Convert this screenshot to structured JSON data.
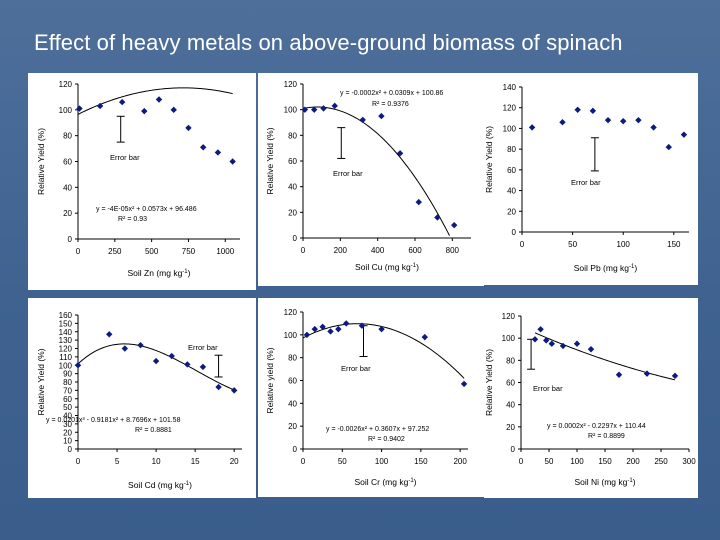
{
  "slide": {
    "title": "Effect of  heavy metals on above-ground biomass of spinach",
    "background_color": "#3f6290",
    "marker_color": "#0d1a80"
  },
  "chart_data": [
    {
      "type": "scatter",
      "xlabel": "Soil Zn (mg kg",
      "xlabel_sup": "-1",
      "xlabel_end": ")",
      "ylabel": "Relative Yield (%)",
      "xlim": [
        0,
        1100
      ],
      "ylim": [
        0,
        120
      ],
      "xticks": [
        0,
        250,
        500,
        750,
        1000
      ],
      "yticks": [
        0,
        20,
        40,
        60,
        80,
        100,
        120
      ],
      "points": [
        [
          10,
          101
        ],
        [
          150,
          103
        ],
        [
          300,
          106
        ],
        [
          450,
          99
        ],
        [
          550,
          108
        ],
        [
          650,
          100
        ],
        [
          750,
          86
        ],
        [
          850,
          71
        ],
        [
          950,
          67
        ],
        [
          1050,
          60
        ]
      ],
      "trend": {
        "coef": [
          -4e-05,
          0.0573,
          96.486
        ],
        "x_range": [
          0,
          1050
        ]
      },
      "equation": "y = -4E-05x² + 0.0573x + 96.486",
      "r2": "R² = 0.93",
      "error_bar_label": "Error bar",
      "error_bar": {
        "x": 290,
        "y_low": 75,
        "y_high": 95
      }
    },
    {
      "type": "scatter",
      "xlabel": "Soil Cu (mg kg",
      "xlabel_sup": "-1",
      "xlabel_end": ")",
      "ylabel": "Relative Yield (%)",
      "xlim": [
        0,
        900
      ],
      "ylim": [
        0,
        120
      ],
      "xticks": [
        0,
        200,
        400,
        600,
        800
      ],
      "yticks": [
        0,
        20,
        40,
        60,
        80,
        100,
        120
      ],
      "points": [
        [
          10,
          100
        ],
        [
          60,
          100
        ],
        [
          110,
          101
        ],
        [
          170,
          103
        ],
        [
          320,
          92
        ],
        [
          420,
          95
        ],
        [
          520,
          66
        ],
        [
          620,
          28
        ],
        [
          720,
          16
        ],
        [
          810,
          10
        ]
      ],
      "trend": {
        "coef": [
          -0.0002,
          0.0309,
          100.86
        ],
        "x_range": [
          0,
          785
        ]
      },
      "equation": "y = -0.0002x² + 0.0309x + 100.86",
      "r2": "R² = 0.9376",
      "error_bar_label": "Error bar",
      "error_bar": {
        "x": 205,
        "y_low": 62,
        "y_high": 86
      }
    },
    {
      "type": "scatter",
      "xlabel": "Soil Pb (mg kg",
      "xlabel_sup": "-1",
      "xlabel_end": ")",
      "ylabel": "Relative Yield (%)",
      "xlim": [
        0,
        165
      ],
      "ylim": [
        0,
        140
      ],
      "xticks": [
        0,
        50,
        100,
        150
      ],
      "yticks": [
        0,
        20,
        40,
        60,
        80,
        100,
        120,
        140
      ],
      "points": [
        [
          10,
          101
        ],
        [
          40,
          106
        ],
        [
          55,
          118
        ],
        [
          70,
          117
        ],
        [
          85,
          108
        ],
        [
          100,
          107
        ],
        [
          115,
          108
        ],
        [
          130,
          101
        ],
        [
          145,
          82
        ],
        [
          160,
          94
        ]
      ],
      "equation": "",
      "r2": "",
      "error_bar_label": "Error bar",
      "error_bar": {
        "x": 72,
        "y_low": 59,
        "y_high": 91
      }
    },
    {
      "type": "scatter",
      "xlabel": "Soil Cd (mg kg",
      "xlabel_sup": "-1",
      "xlabel_end": ")",
      "ylabel": "Relative Yield (%)",
      "xlim": [
        0,
        21
      ],
      "ylim": [
        0,
        160
      ],
      "xticks": [
        0,
        5,
        10,
        15,
        20
      ],
      "yticks": [
        0,
        10,
        20,
        30,
        40,
        50,
        60,
        70,
        80,
        90,
        100,
        110,
        120,
        130,
        140,
        150,
        160
      ],
      "points": [
        [
          0,
          100
        ],
        [
          4,
          137
        ],
        [
          6,
          120
        ],
        [
          8,
          124
        ],
        [
          10,
          105
        ],
        [
          12,
          111
        ],
        [
          14,
          101
        ],
        [
          16,
          98
        ],
        [
          18,
          74
        ],
        [
          20,
          70
        ]
      ],
      "trend": {
        "coef": [
          0.0201,
          -0.9181,
          8.7696,
          101.58
        ],
        "x_range": [
          0,
          20
        ]
      },
      "equation": "y = 0.0201x³ - 0.9181x² + 8.7696x + 101.58",
      "r2": "R² = 0.8881",
      "error_bar_label": "Error bar",
      "error_bar": {
        "x": 18,
        "y_low": 86,
        "y_high": 112
      }
    },
    {
      "type": "scatter",
      "xlabel": "Soil Cr (mg kg",
      "xlabel_sup": "-1",
      "xlabel_end": ")",
      "ylabel": "Relative yield (%)",
      "xlim": [
        0,
        210
      ],
      "ylim": [
        0,
        120
      ],
      "xticks": [
        0,
        50,
        100,
        150,
        200
      ],
      "yticks": [
        0,
        20,
        40,
        60,
        80,
        100,
        120
      ],
      "points": [
        [
          5,
          100
        ],
        [
          15,
          105
        ],
        [
          25,
          107
        ],
        [
          35,
          103
        ],
        [
          45,
          105
        ],
        [
          55,
          110
        ],
        [
          75,
          108
        ],
        [
          100,
          105
        ],
        [
          155,
          98
        ],
        [
          205,
          57
        ]
      ],
      "trend": {
        "coef": [
          -0.0026,
          0.3607,
          97.252
        ],
        "x_range": [
          0,
          205
        ]
      },
      "equation": "y = -0.0026x² + 0.3607x + 97.252",
      "r2": "R² = 0.9402",
      "error_bar_label": "Error bar",
      "error_bar": {
        "x": 77,
        "y_low": 81,
        "y_high": 108
      }
    },
    {
      "type": "scatter",
      "xlabel": "Soil Ni (mg kg",
      "xlabel_sup": "-1",
      "xlabel_end": ")",
      "ylabel": "Relative Yield (%)",
      "xlim": [
        0,
        300
      ],
      "ylim": [
        0,
        120
      ],
      "xticks": [
        0,
        50,
        100,
        150,
        200,
        250,
        300
      ],
      "yticks": [
        0,
        20,
        40,
        60,
        80,
        100,
        120
      ],
      "points": [
        [
          25,
          99
        ],
        [
          35,
          108
        ],
        [
          45,
          98
        ],
        [
          55,
          95
        ],
        [
          75,
          93
        ],
        [
          100,
          95
        ],
        [
          125,
          90
        ],
        [
          175,
          67
        ],
        [
          225,
          68
        ],
        [
          275,
          66
        ]
      ],
      "trend": {
        "coef": [
          0.0002,
          -0.2297,
          110.44
        ],
        "x_range": [
          25,
          275
        ]
      },
      "equation": "y = 0.0002x² - 0.2297x + 110.44",
      "r2": "R² = 0.8899",
      "error_bar_label": "Error bar",
      "error_bar": {
        "x": 18,
        "y_low": 72,
        "y_high": 99
      }
    }
  ]
}
